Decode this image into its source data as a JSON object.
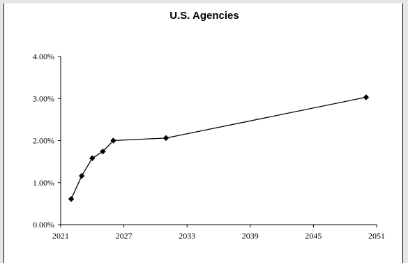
{
  "chart_data": {
    "type": "line",
    "title": "U.S. Agencies",
    "xlabel": "",
    "ylabel": "",
    "xlim": [
      2021,
      2051
    ],
    "ylim": [
      0,
      4
    ],
    "x_ticks": [
      2021,
      2027,
      2033,
      2039,
      2045,
      2051
    ],
    "y_ticks": [
      0,
      1,
      2,
      3,
      4
    ],
    "y_tick_labels": [
      "0.00%",
      "1.00%",
      "2.00%",
      "3.00%",
      "4.00%"
    ],
    "grid": false,
    "legend": "none",
    "series": [
      {
        "color": "#000000",
        "marker": "diamond",
        "x": [
          2022.0,
          2023.0,
          2024.0,
          2025.0,
          2026.0,
          2031.0,
          2050.0
        ],
        "y": [
          0.61,
          1.16,
          1.58,
          1.74,
          2.0,
          2.06,
          3.03
        ]
      }
    ]
  }
}
